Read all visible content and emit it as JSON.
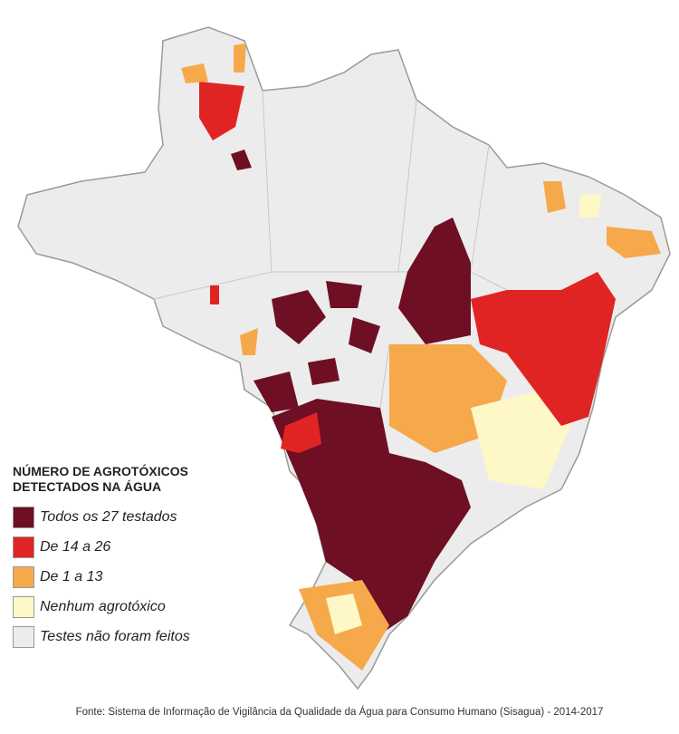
{
  "legend": {
    "title": "NÚMERO DE AGROTÓXICOS DETECTADOS NA ÁGUA",
    "items": [
      {
        "label": "Todos os 27 testados",
        "color": "#6e0f24"
      },
      {
        "label": "De 14 a 26",
        "color": "#e02424"
      },
      {
        "label": "De 1 a 13",
        "color": "#f6a94a"
      },
      {
        "label": "Nenhum agrotóxico",
        "color": "#fdf8c6"
      },
      {
        "label": "Testes não foram feitos",
        "color": "#ececec"
      }
    ]
  },
  "source": "Fonte: Sistema de Informação de Vigilância da Qualidade da Água para Consumo Humano (Sisagua) - 2014-2017"
}
